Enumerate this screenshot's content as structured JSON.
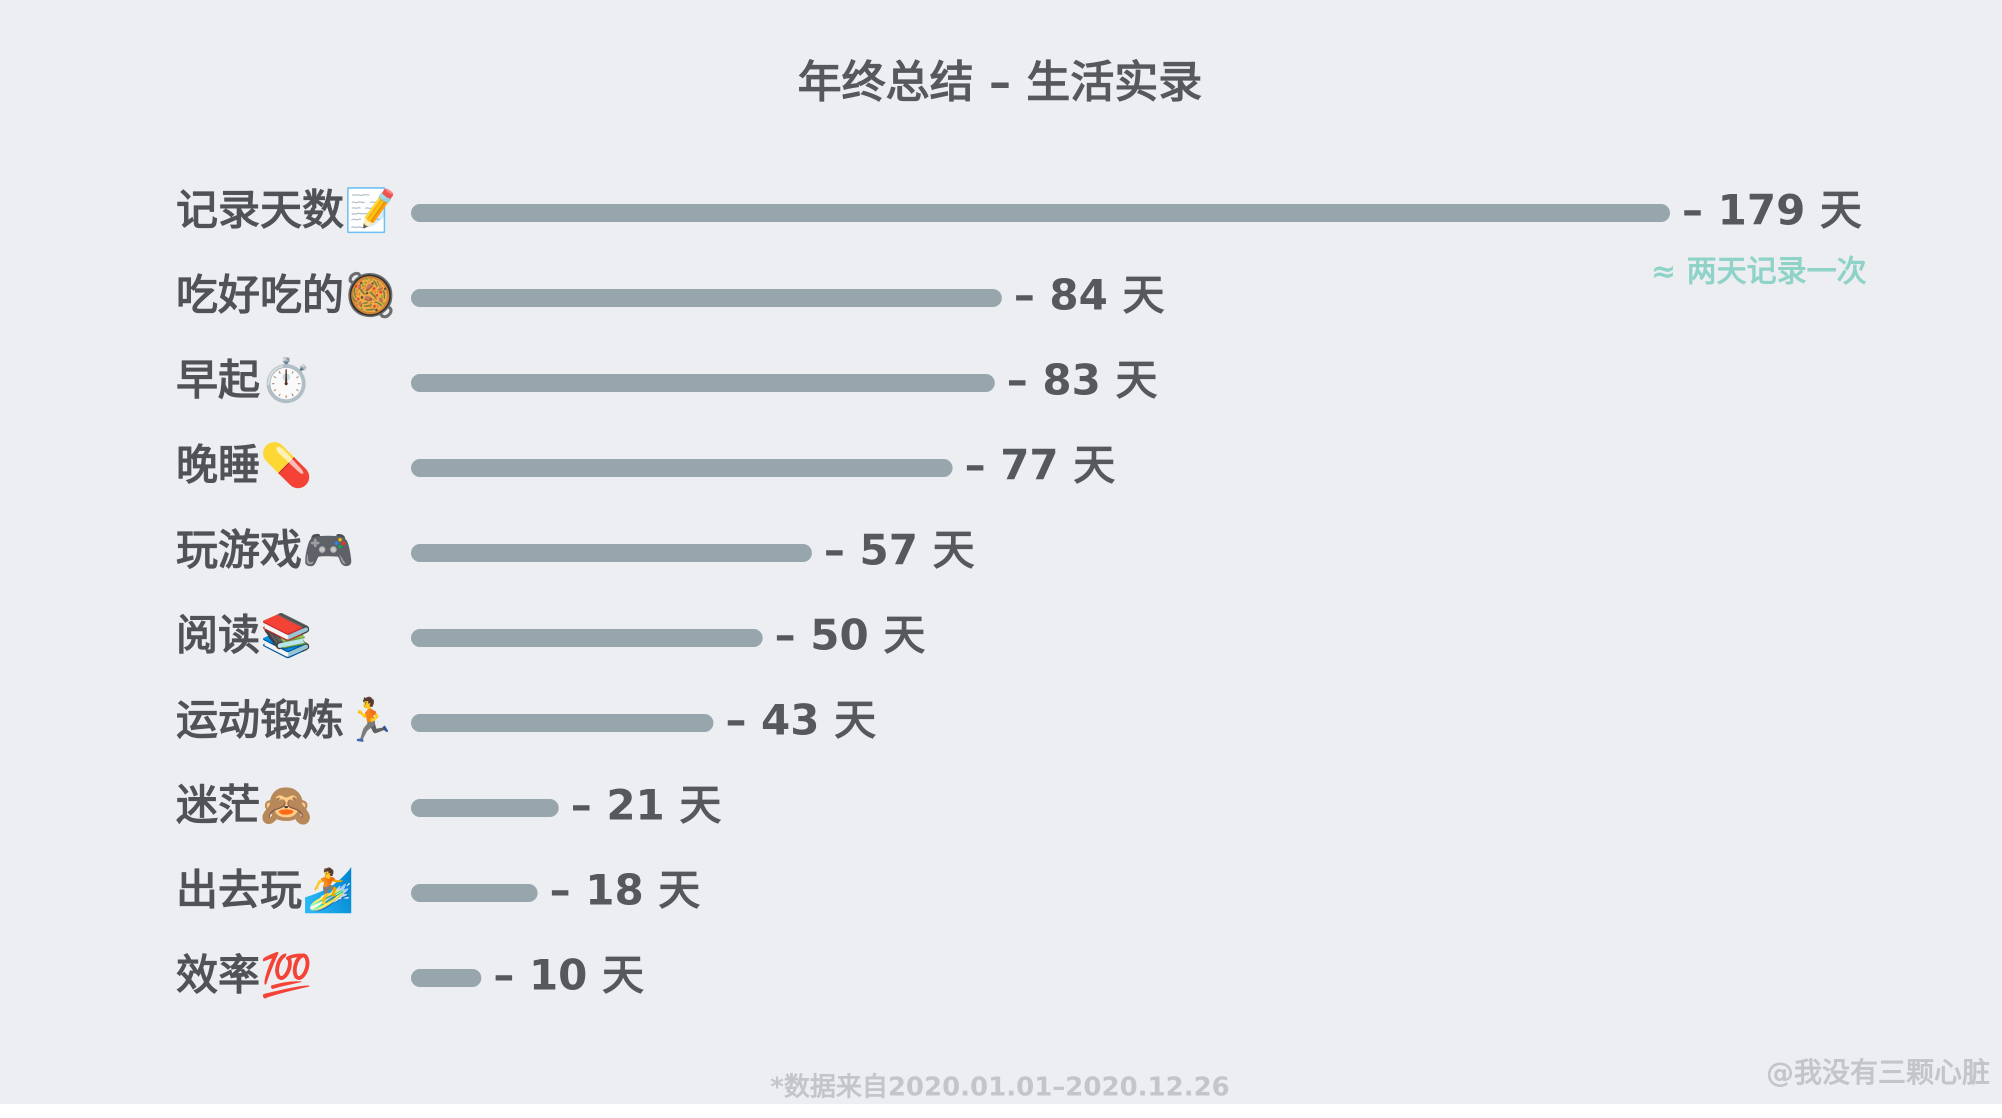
{
  "chart_data": {
    "type": "bar",
    "orientation": "horizontal",
    "title": "年终总结 – 生活实录",
    "categories": [
      "记录天数📝",
      "吃好吃的🥘",
      "早起⏱️",
      "晚睡💊",
      "玩游戏🎮",
      "阅读📚",
      "运动锻炼🏃",
      "迷茫🙈",
      "出去玩🏄",
      "效率💯"
    ],
    "values": [
      179,
      84,
      83,
      77,
      57,
      50,
      43,
      21,
      18,
      10
    ],
    "value_labels": [
      "– 179 天",
      "– 84 天",
      "– 83 天",
      "– 77 天",
      "– 57 天",
      "– 50 天",
      "– 43 天",
      "– 21 天",
      "– 18 天",
      "– 10 天"
    ],
    "color": "#97a6ad",
    "annotation": "≈ 两天记录一次",
    "footnote": "*数据来自2020.01.01–2020.12.26",
    "watermark": "@我没有三颗心脏"
  }
}
